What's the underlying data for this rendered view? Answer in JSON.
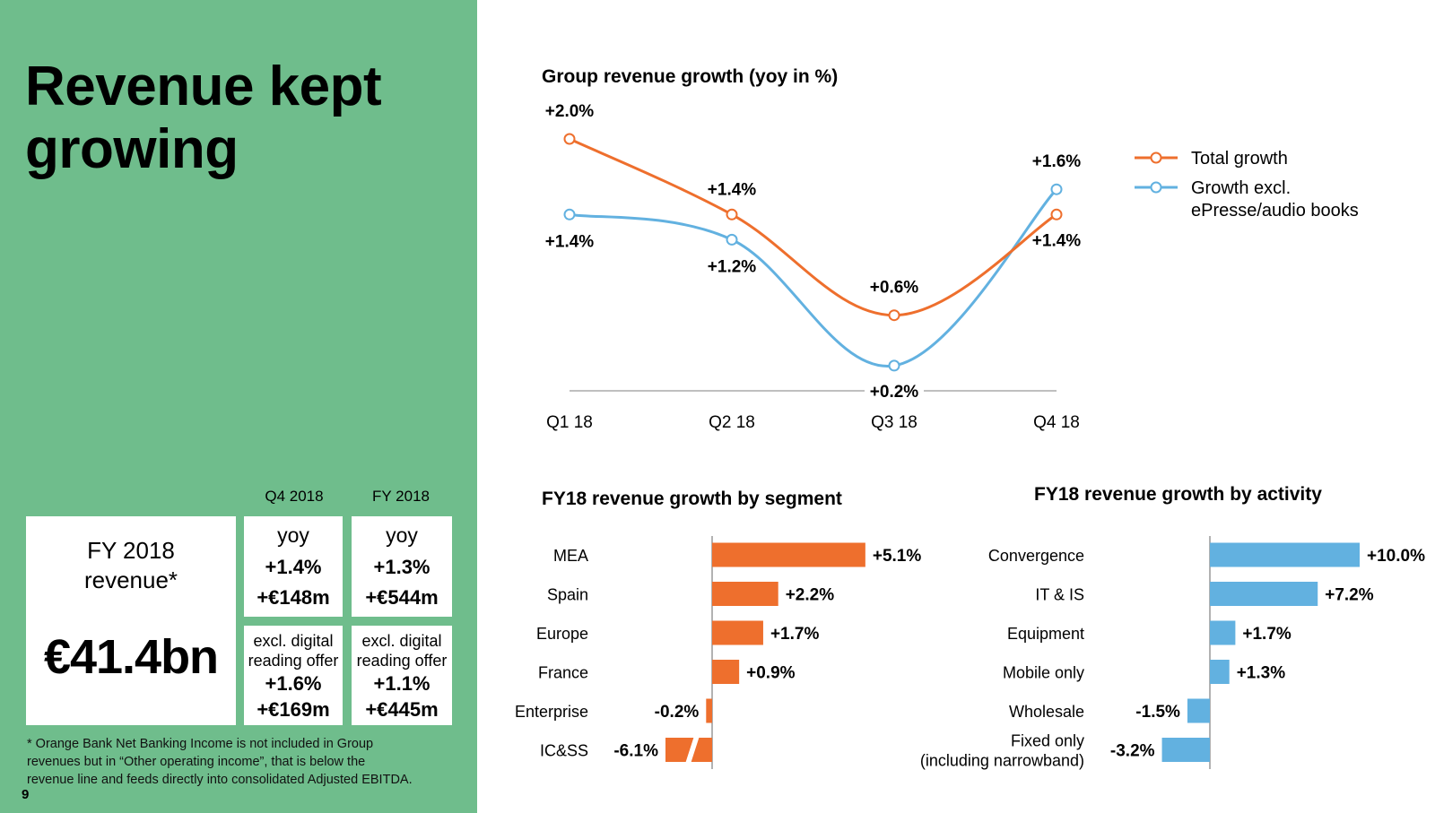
{
  "page": {
    "number": "9"
  },
  "headline": "Revenue kept growing",
  "summary": {
    "col_q4": "Q4 2018",
    "col_fy": "FY 2018",
    "fy_label_line1": "FY 2018",
    "fy_label_line2": "revenue*",
    "fy_value": "€41.4bn",
    "q4": {
      "yoy_label": "yoy",
      "yoy_pct": "+1.4%",
      "yoy_abs": "+€148m",
      "excl_line1": "excl. digital",
      "excl_line2": "reading offer",
      "excl_pct": "+1.6%",
      "excl_abs": "+€169m"
    },
    "fy": {
      "yoy_label": "yoy",
      "yoy_pct": "+1.3%",
      "yoy_abs": "+€544m",
      "excl_line1": "excl. digital",
      "excl_line2": "reading offer",
      "excl_pct": "+1.1%",
      "excl_abs": "+€445m"
    }
  },
  "footnote": {
    "line1": "* Orange Bank Net Banking Income is not included in Group",
    "line2": "revenues but in “Other operating income”, that is below the",
    "line3": "revenue line and feeds directly into consolidated Adjusted EBITDA."
  },
  "colors": {
    "panel": "#6fbd8c",
    "orange": "#ee6f2d",
    "blue": "#62b1e0",
    "axis": "#999999"
  },
  "chart_data": [
    {
      "type": "line",
      "title": "Group revenue growth (yoy in %)",
      "categories": [
        "Q1 18",
        "Q2 18",
        "Q3 18",
        "Q4 18"
      ],
      "ylim": [
        0,
        2.0
      ],
      "series": [
        {
          "name": "Total growth",
          "values": [
            2.0,
            1.4,
            0.6,
            1.4
          ],
          "labels": [
            "+2.0%",
            "+1.4%",
            "+0.6%",
            "+1.4%"
          ],
          "color": "#ee6f2d"
        },
        {
          "name": "Growth excl. ePresse/audio books",
          "legend_lines": [
            "Growth excl.",
            "ePresse/audio books"
          ],
          "values": [
            1.4,
            1.2,
            0.2,
            1.6
          ],
          "labels": [
            "+1.4%",
            "+1.2%",
            "+0.2%",
            "+1.6%"
          ],
          "color": "#62b1e0"
        }
      ]
    },
    {
      "type": "bar",
      "orientation": "horizontal",
      "title": "FY18 revenue growth by segment",
      "categories": [
        "MEA",
        "Spain",
        "Europe",
        "France",
        "Enterprise",
        "IC&SS"
      ],
      "values": [
        5.1,
        2.2,
        1.7,
        0.9,
        -0.2,
        -6.1
      ],
      "labels": [
        "+5.1%",
        "+2.2%",
        "+1.7%",
        "+0.9%",
        "-0.2%",
        "-6.1%"
      ],
      "broken_axis_for": [
        "IC&SS"
      ],
      "color": "#ee6f2d"
    },
    {
      "type": "bar",
      "orientation": "horizontal",
      "title": "FY18 revenue growth by activity",
      "categories": [
        "Convergence",
        "IT & IS",
        "Equipment",
        "Mobile only",
        "Wholesale",
        "Fixed only (including narrowband)"
      ],
      "category_lines": [
        [
          "Convergence"
        ],
        [
          "IT & IS"
        ],
        [
          "Equipment"
        ],
        [
          "Mobile only"
        ],
        [
          "Wholesale"
        ],
        [
          "Fixed only",
          "(including narrowband)"
        ]
      ],
      "values": [
        10.0,
        7.2,
        1.7,
        1.3,
        -1.5,
        -3.2
      ],
      "labels": [
        "+10.0%",
        "+7.2%",
        "+1.7%",
        "+1.3%",
        "-1.5%",
        "-3.2%"
      ],
      "color": "#62b1e0"
    }
  ]
}
